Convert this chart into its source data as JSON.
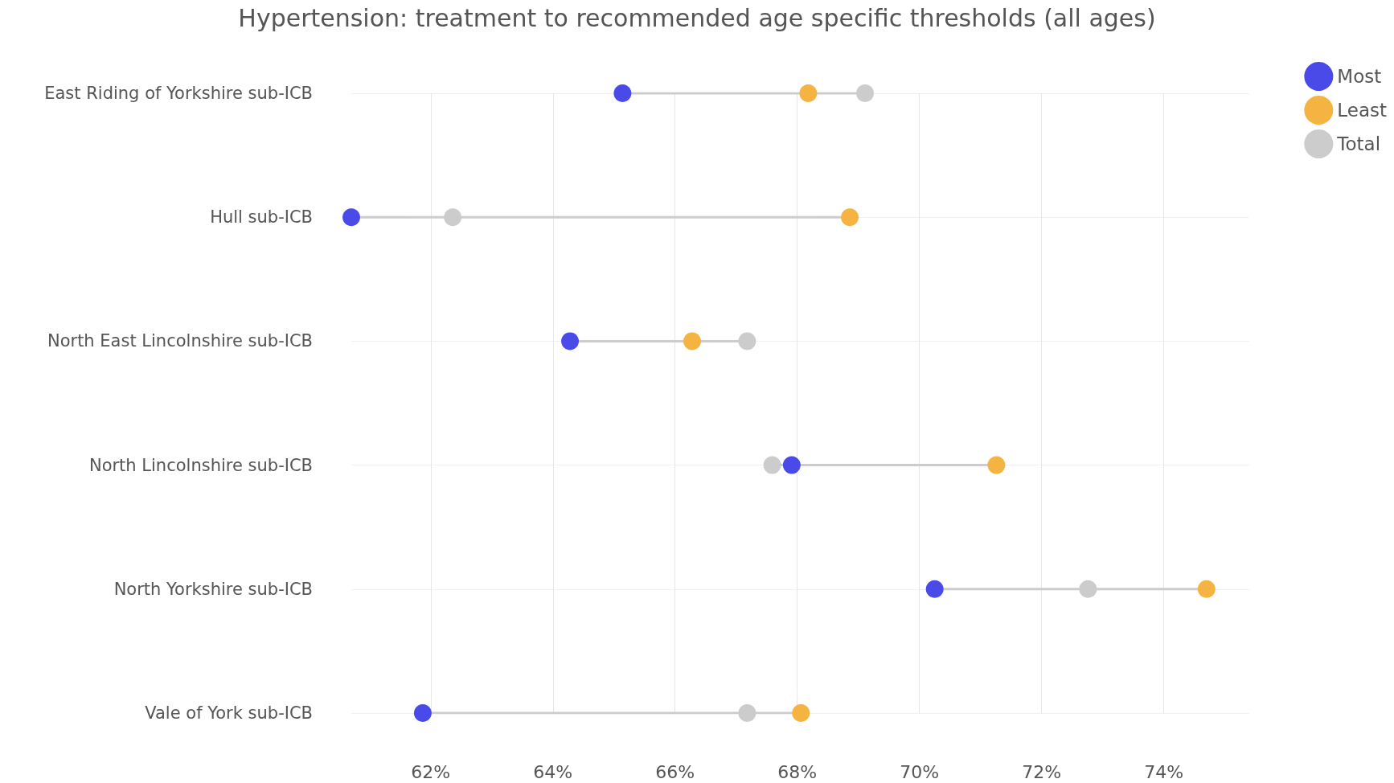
{
  "chart_data": {
    "type": "scatter",
    "orientation": "horizontal",
    "title": "Hypertension: treatment to recommended age specific thresholds (all ages)",
    "categories": [
      "East Riding of Yorkshire sub-ICB",
      "Hull sub-ICB",
      "North East Lincolnshire sub-ICB",
      "North Lincolnshire sub-ICB",
      "North Yorkshire sub-ICB",
      "Vale of York sub-ICB"
    ],
    "series": [
      {
        "name": "Most",
        "color": "#4a4ae8",
        "values": [
          65.14,
          60.7,
          64.28,
          67.91,
          70.25,
          61.87
        ]
      },
      {
        "name": "Least",
        "color": "#f5b342",
        "values": [
          68.18,
          68.86,
          66.28,
          71.26,
          74.7,
          68.06
        ]
      },
      {
        "name": "Total",
        "color": "#cccccc",
        "values": [
          69.11,
          62.36,
          67.18,
          67.59,
          72.76,
          67.18
        ]
      }
    ],
    "xlim": [
      60.7,
      75.4
    ],
    "xticks": [
      {
        "value": 62,
        "label": "62%"
      },
      {
        "value": 64,
        "label": "64%"
      },
      {
        "value": 66,
        "label": "66%"
      },
      {
        "value": 68,
        "label": "68%"
      },
      {
        "value": 70,
        "label": "70%"
      },
      {
        "value": 72,
        "label": "72%"
      },
      {
        "value": 74,
        "label": "74%"
      }
    ],
    "grid": true,
    "legend": "top right",
    "marker": "circle"
  }
}
